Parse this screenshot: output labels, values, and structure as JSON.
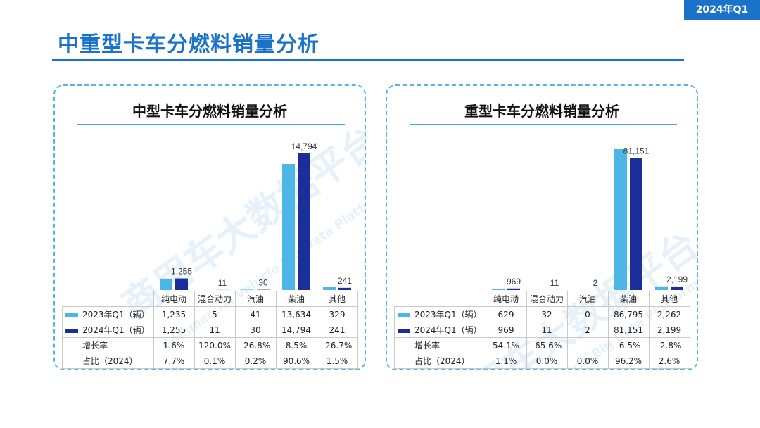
{
  "badge": "2024年Q1",
  "title": "中重型卡车分燃料销量分析",
  "watermark": {
    "main": "商用车大数据平台",
    "sub": "Commercial Vehicle Big Data Platform"
  },
  "colors": {
    "series_2023": "#4db6e6",
    "series_2024": "#1a2f9a",
    "accent": "#1a73c8"
  },
  "chart_data": [
    {
      "type": "bar",
      "title": "中型卡车分燃料销量分析",
      "categories": [
        "纯电动",
        "混合动力",
        "汽油",
        "柴油",
        "其他"
      ],
      "series": [
        {
          "name": "2023年Q1（辆）",
          "values": [
            1235,
            5,
            41,
            13634,
            329
          ]
        },
        {
          "name": "2024年Q1（辆）",
          "values": [
            1255,
            11,
            30,
            14794,
            241
          ]
        }
      ],
      "data_labels": [
        "1,255",
        "11",
        "30",
        "14,794",
        "241"
      ],
      "ylim": [
        0,
        16000
      ],
      "table_rows": [
        {
          "label": "2023年Q1（辆）",
          "marker": "series_2023",
          "values": [
            "1,235",
            "5",
            "41",
            "13,634",
            "329"
          ]
        },
        {
          "label": "2024年Q1（辆）",
          "marker": "series_2024",
          "values": [
            "1,255",
            "11",
            "30",
            "14,794",
            "241"
          ]
        },
        {
          "label": "增长率",
          "marker": "",
          "values": [
            "1.6%",
            "120.0%",
            "-26.8%",
            "8.5%",
            "-26.7%"
          ]
        },
        {
          "label": "占比（2024）",
          "marker": "",
          "values": [
            "7.7%",
            "0.1%",
            "0.2%",
            "90.6%",
            "1.5%"
          ]
        }
      ]
    },
    {
      "type": "bar",
      "title": "重型卡车分燃料销量分析",
      "categories": [
        "纯电动",
        "混合动力",
        "汽油",
        "柴油",
        "其他"
      ],
      "series": [
        {
          "name": "2023年Q1（辆）",
          "values": [
            629,
            32,
            0,
            86795,
            2262
          ]
        },
        {
          "name": "2024年Q1（辆）",
          "values": [
            969,
            11,
            2,
            81151,
            2199
          ]
        }
      ],
      "data_labels": [
        "969",
        "11",
        "2",
        "81,151",
        "2,199"
      ],
      "ylim": [
        0,
        91000
      ],
      "table_rows": [
        {
          "label": "2023年Q1（辆）",
          "marker": "series_2023",
          "values": [
            "629",
            "32",
            "0",
            "86,795",
            "2,262"
          ]
        },
        {
          "label": "2024年Q1（辆）",
          "marker": "series_2024",
          "values": [
            "969",
            "11",
            "2",
            "81,151",
            "2,199"
          ]
        },
        {
          "label": "增长率",
          "marker": "",
          "values": [
            "54.1%",
            "-65.6%",
            "",
            "-6.5%",
            "-2.8%"
          ]
        },
        {
          "label": "占比（2024）",
          "marker": "",
          "values": [
            "1.1%",
            "0.0%",
            "0.0%",
            "96.2%",
            "2.6%"
          ]
        }
      ]
    }
  ]
}
